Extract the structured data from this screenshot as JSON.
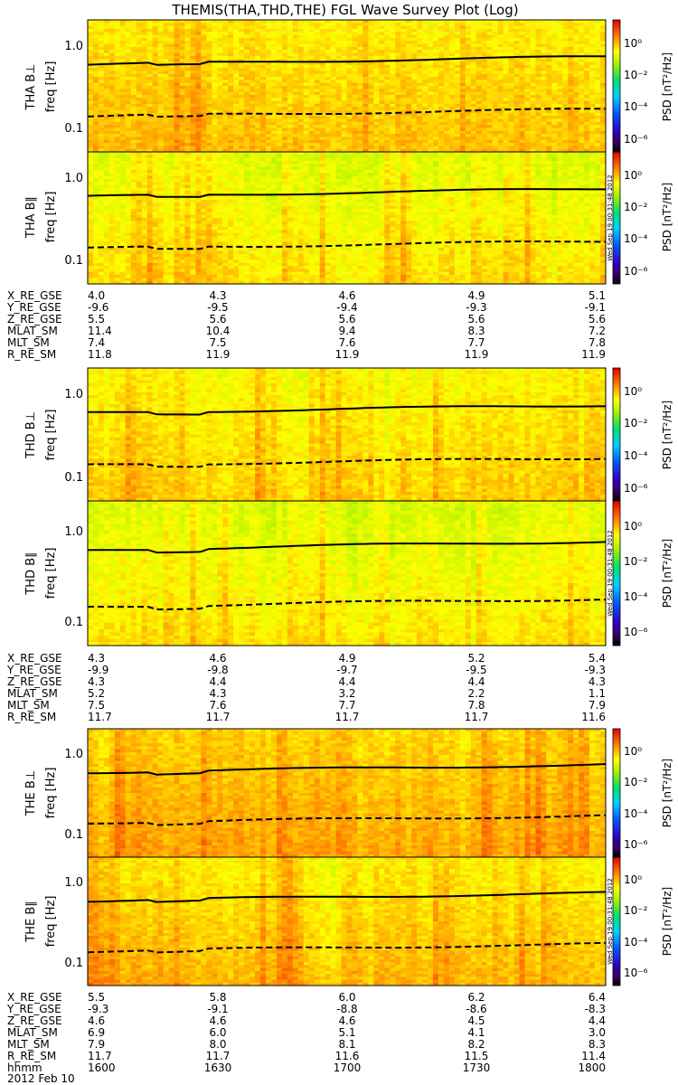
{
  "title": "THEMIS(THA,THD,THE) FGL Wave Survey Plot (Log)",
  "freq_label": "freq [Hz]",
  "colorbar": {
    "label": "PSD [nT²/Hz]",
    "ticks": [
      "10⁰",
      "10⁻²",
      "10⁻⁴",
      "10⁻⁶"
    ],
    "tick_exponents": [
      0,
      -2,
      -4,
      -6
    ],
    "range_log10": [
      -7,
      1.3
    ]
  },
  "y_ticks": [
    "1.0",
    "0.1"
  ],
  "y_tick_values": [
    1.0,
    0.1
  ],
  "y_range_hz": [
    0.055,
    1.8
  ],
  "stamp": "Wed Sep 19 00:31:48 2012",
  "date_label": "2012 Feb 10",
  "time_axis": {
    "label": "hhmm",
    "values": [
      "1600",
      "1630",
      "1700",
      "1730",
      "1800"
    ]
  },
  "groups": [
    {
      "probe": "THA",
      "panels": [
        {
          "label": "THA B⊥",
          "kind": "perp",
          "level": 0.3
        },
        {
          "label": "THA B∥",
          "kind": "par",
          "level": -0.8
        }
      ],
      "ephemeris": [
        {
          "label": "X_RE_GSE",
          "values": [
            "4.0",
            "4.3",
            "4.6",
            "4.9",
            "5.1"
          ]
        },
        {
          "label": "Y_RE_GSE",
          "values": [
            "-9.6",
            "-9.5",
            "-9.4",
            "-9.3",
            "-9.1"
          ]
        },
        {
          "label": "Z_RE_GSE",
          "values": [
            "5.5",
            "5.6",
            "5.6",
            "5.6",
            "5.6"
          ]
        },
        {
          "label": "MLAT_SM",
          "values": [
            "11.4",
            "10.4",
            "9.4",
            "8.3",
            "7.2"
          ]
        },
        {
          "label": "MLT_SM",
          "values": [
            "7.4",
            "7.5",
            "7.6",
            "7.7",
            "7.8"
          ]
        },
        {
          "label": "R_RE_SM",
          "values": [
            "11.8",
            "11.9",
            "11.9",
            "11.9",
            "11.9"
          ]
        }
      ]
    },
    {
      "probe": "THD",
      "panels": [
        {
          "label": "THD B⊥",
          "kind": "perp",
          "level": 0.0
        },
        {
          "label": "THD B∥",
          "kind": "par",
          "level": -1.0
        }
      ],
      "ephemeris": [
        {
          "label": "X_RE_GSE",
          "values": [
            "4.3",
            "4.6",
            "4.9",
            "5.2",
            "5.4"
          ]
        },
        {
          "label": "Y_RE_GSE",
          "values": [
            "-9.9",
            "-9.8",
            "-9.7",
            "-9.5",
            "-9.3"
          ]
        },
        {
          "label": "Z_RE_GSE",
          "values": [
            "4.3",
            "4.4",
            "4.4",
            "4.4",
            "4.3"
          ]
        },
        {
          "label": "MLAT_SM",
          "values": [
            "5.2",
            "4.3",
            "3.2",
            "2.2",
            "1.1"
          ]
        },
        {
          "label": "MLT_SM",
          "values": [
            "7.5",
            "7.6",
            "7.7",
            "7.8",
            "7.9"
          ]
        },
        {
          "label": "R_RE_SM",
          "values": [
            "11.7",
            "11.7",
            "11.7",
            "11.7",
            "11.6"
          ]
        }
      ]
    },
    {
      "probe": "THE",
      "panels": [
        {
          "label": "THE B⊥",
          "kind": "perp",
          "level": 1.1
        },
        {
          "label": "THE B∥",
          "kind": "par",
          "level": 0.3
        }
      ],
      "ephemeris": [
        {
          "label": "X_RE_GSE",
          "values": [
            "5.5",
            "5.8",
            "6.0",
            "6.2",
            "6.4"
          ]
        },
        {
          "label": "Y_RE_GSE",
          "values": [
            "-9.3",
            "-9.1",
            "-8.8",
            "-8.6",
            "-8.3"
          ]
        },
        {
          "label": "Z_RE_GSE",
          "values": [
            "4.6",
            "4.6",
            "4.6",
            "4.5",
            "4.4"
          ]
        },
        {
          "label": "MLAT_SM",
          "values": [
            "6.9",
            "6.0",
            "5.1",
            "4.1",
            "3.0"
          ]
        },
        {
          "label": "MLT_SM",
          "values": [
            "7.9",
            "8.0",
            "8.1",
            "8.2",
            "8.3"
          ]
        },
        {
          "label": "R_RE_SM",
          "values": [
            "11.7",
            "11.7",
            "11.6",
            "11.5",
            "11.4"
          ]
        }
      ]
    }
  ],
  "chart_data": {
    "type": "heatmap",
    "title": "THEMIS(THA,THD,THE) FGL Wave Survey Plot (Log)",
    "x_unit": "time (hhmm), 2012 Feb 10",
    "x_ticks": [
      "1600",
      "1630",
      "1700",
      "1730",
      "1800"
    ],
    "xlim": [
      "1600",
      "1800"
    ],
    "ylabel": "freq [Hz]",
    "ylim": [
      0.055,
      1.8
    ],
    "yscale": "log",
    "z_label": "PSD [nT²/Hz]",
    "z_scale": "log",
    "z_ticks": [
      1,
      0.01,
      0.0001,
      1e-06
    ],
    "panels": [
      "THA B⊥",
      "THA B∥",
      "THD B⊥",
      "THD B∥",
      "THE B⊥",
      "THE B∥"
    ],
    "overlay_lines": [
      {
        "style": "solid",
        "approx_hz_start": 0.55,
        "approx_hz_end": 0.68
      },
      {
        "style": "dashed",
        "approx_hz_start": 0.14,
        "approx_hz_end": 0.17
      }
    ]
  }
}
